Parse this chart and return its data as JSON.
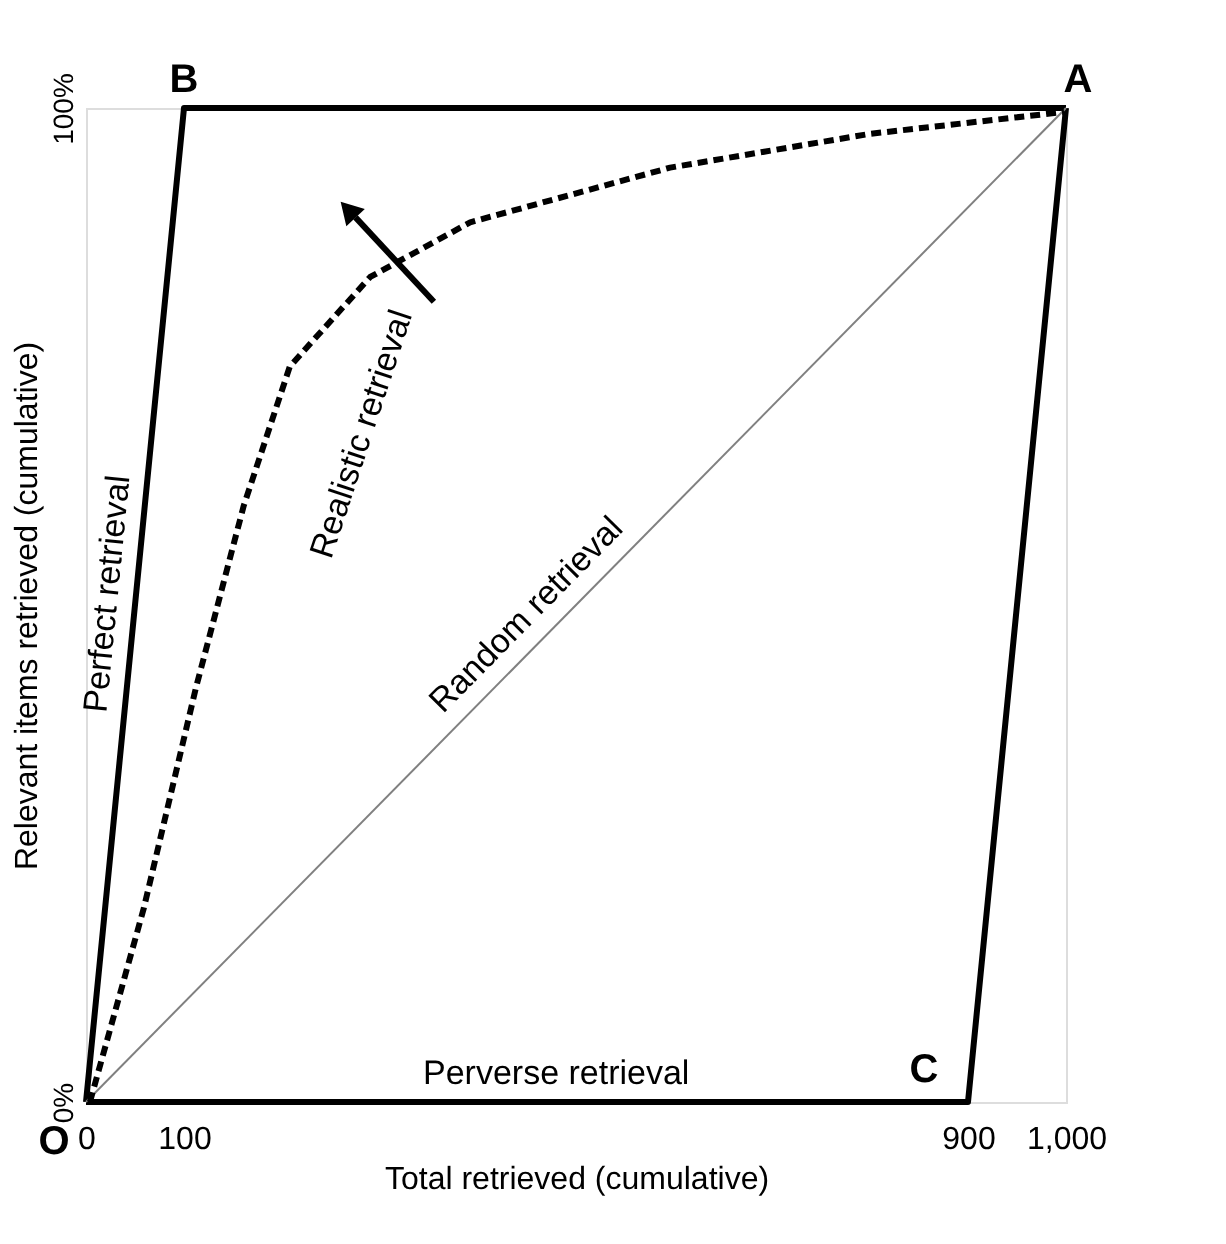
{
  "chart_data": {
    "type": "line",
    "xlabel": "Total retrieved (cumulative)",
    "ylabel": "Relevant items retrieved (cumulative)",
    "xlim": [
      0,
      1000
    ],
    "ylim": [
      0,
      100
    ],
    "xticks": [
      0,
      100,
      900,
      {
        "value": 1000,
        "label": "1,000"
      }
    ],
    "yticks": [
      {
        "value": 0,
        "label": "0%"
      },
      {
        "value": 100,
        "label": "100%"
      }
    ],
    "grid": false,
    "marker": "none",
    "series": [
      {
        "name": "Perfect retrieval",
        "color": "#000000",
        "line_style": "solid",
        "x": [
          0,
          100,
          1000
        ],
        "values": [
          0,
          100,
          100
        ]
      },
      {
        "name": "Perverse retrieval",
        "color": "#000000",
        "line_style": "solid",
        "x": [
          0,
          900,
          1000
        ],
        "values": [
          0,
          0,
          100
        ]
      },
      {
        "name": "Random retrieval",
        "color": "#808080",
        "line_style": "solid",
        "x": [
          0,
          1000
        ],
        "values": [
          0,
          100
        ]
      },
      {
        "name": "Realistic retrieval",
        "color": "#000000",
        "line_style": "dashed",
        "x": [
          4,
          59,
          112,
          161,
          208,
          290,
          392,
          596,
          800,
          998
        ],
        "values": [
          0,
          19.5,
          41.6,
          60,
          74,
          83,
          88.5,
          94,
          97.4,
          99.6
        ]
      }
    ],
    "annotations": [
      {
        "text": "A",
        "x": 1000,
        "y": 100
      },
      {
        "text": "B",
        "x": 100,
        "y": 100
      },
      {
        "text": "C",
        "x": 900,
        "y": 0
      },
      {
        "text": "O",
        "x": 0,
        "y": 0
      }
    ]
  }
}
